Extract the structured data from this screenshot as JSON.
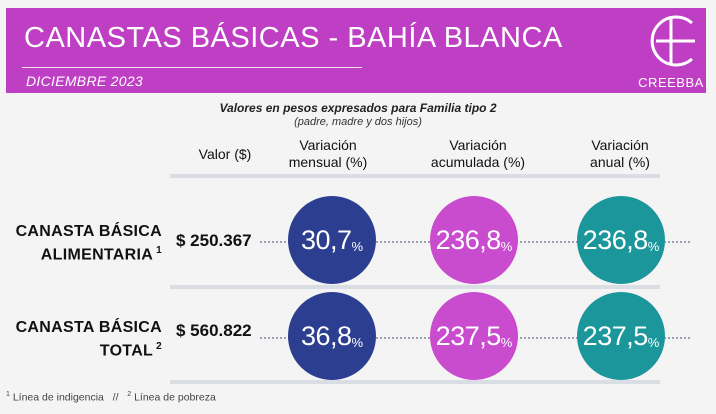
{
  "header": {
    "title": "CANASTAS  BÁSICAS - BAHÍA  BLANCA",
    "date": "DICIEMBRE 2023",
    "logo_text": "CREEBBA"
  },
  "subtitle": "Valores en pesos expresados para Familia tipo 2",
  "subtitle_detail": "(padre, madre y dos hijos)",
  "columns": {
    "value": "Valor ($)",
    "monthly": [
      "Variación",
      "mensual (%)"
    ],
    "accumulated": [
      "Variación",
      "acumulada (%)"
    ],
    "annual": [
      "Variación",
      "anual (%)"
    ]
  },
  "rows": [
    {
      "label": [
        "CANASTA BÁSICA",
        "ALIMENTARIA"
      ],
      "note": "1",
      "value": "$ 250.367",
      "monthly": "30,7",
      "accumulated": "236,8",
      "annual": "236,8"
    },
    {
      "label": [
        "CANASTA BÁSICA",
        "TOTAL"
      ],
      "note": "2",
      "value": "$ 560.822",
      "monthly": "36,8",
      "accumulated": "237,5",
      "annual": "237,5"
    }
  ],
  "percent_symbol": "%",
  "footer": {
    "note1_mark": "1",
    "note1": " Línea de indigencia",
    "separator": "   //   ",
    "note2_mark": "2",
    "note2": " Línea de pobreza"
  },
  "colors": {
    "header": "#bf3fc4",
    "monthly": "#2b3e8f",
    "accumulated": "#c94ccf",
    "annual": "#1b969b"
  }
}
